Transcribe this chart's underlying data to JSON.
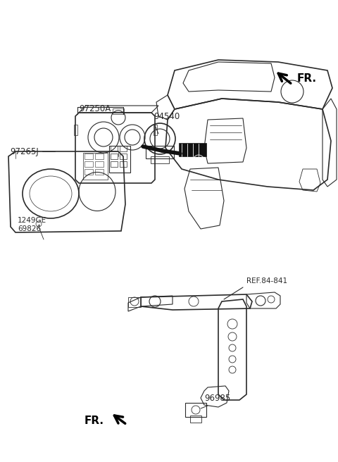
{
  "bg_color": "#ffffff",
  "lc": "#2a2a2a",
  "figsize": [
    4.8,
    6.56
  ],
  "dpi": 100,
  "xlim": [
    0,
    480
  ],
  "ylim": [
    0,
    656
  ]
}
